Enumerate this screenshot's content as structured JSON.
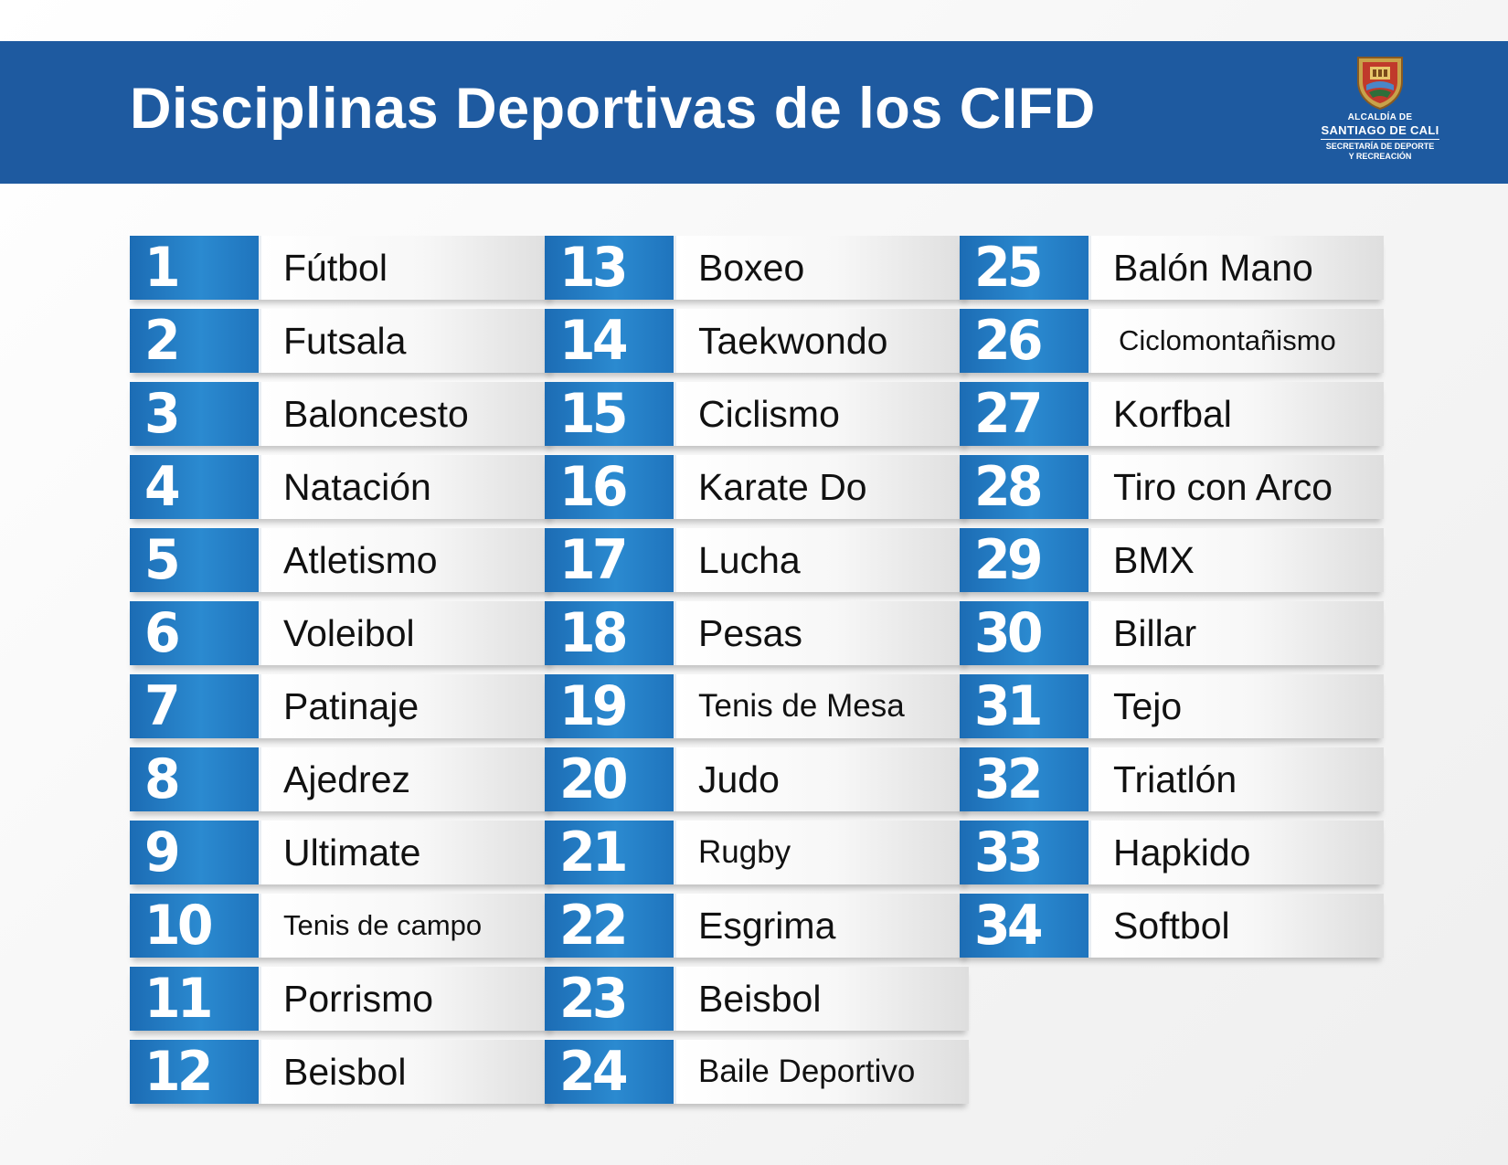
{
  "header": {
    "title": "Disciplinas Deportivas de los CIFD",
    "logo": {
      "line1": "ALCALDÍA DE",
      "line2": "SANTIAGO DE CALI",
      "line3": "SECRETARÍA DE DEPORTE",
      "line4": "Y RECREACIÓN"
    }
  },
  "columns": [
    [
      {
        "number": "1",
        "name": "Fútbol"
      },
      {
        "number": "2",
        "name": "Futsala"
      },
      {
        "number": "3",
        "name": "Baloncesto"
      },
      {
        "number": "4",
        "name": "Natación"
      },
      {
        "number": "5",
        "name": "Atletismo"
      },
      {
        "number": "6",
        "name": "Voleibol"
      },
      {
        "number": "7",
        "name": "Patinaje"
      },
      {
        "number": "8",
        "name": "Ajedrez"
      },
      {
        "number": "9",
        "name": "Ultimate"
      },
      {
        "number": "10",
        "name": "Tenis de campo"
      },
      {
        "number": "11",
        "name": "Porrismo"
      },
      {
        "number": "12",
        "name": "Beisbol"
      }
    ],
    [
      {
        "number": "13",
        "name": "Boxeo"
      },
      {
        "number": "14",
        "name": "Taekwondo"
      },
      {
        "number": "15",
        "name": "Ciclismo"
      },
      {
        "number": "16",
        "name": "Karate Do"
      },
      {
        "number": "17",
        "name": "Lucha"
      },
      {
        "number": "18",
        "name": "Pesas"
      },
      {
        "number": "19",
        "name": "Tenis de Mesa"
      },
      {
        "number": "20",
        "name": "Judo"
      },
      {
        "number": "21",
        "name": "Rugby"
      },
      {
        "number": "22",
        "name": "Esgrima"
      },
      {
        "number": "23",
        "name": "Beisbol"
      },
      {
        "number": "24",
        "name": "Baile Deportivo"
      }
    ],
    [
      {
        "number": "25",
        "name": "Balón Mano"
      },
      {
        "number": "26",
        "name": "Ciclomontañismo"
      },
      {
        "number": "27",
        "name": "Korfbal"
      },
      {
        "number": "28",
        "name": "Tiro con Arco"
      },
      {
        "number": "29",
        "name": "BMX"
      },
      {
        "number": "30",
        "name": "Billar"
      },
      {
        "number": "31",
        "name": "Tejo"
      },
      {
        "number": "32",
        "name": "Triatlón"
      },
      {
        "number": "33",
        "name": "Hapkido"
      },
      {
        "number": "34",
        "name": "Softbol"
      }
    ]
  ]
}
